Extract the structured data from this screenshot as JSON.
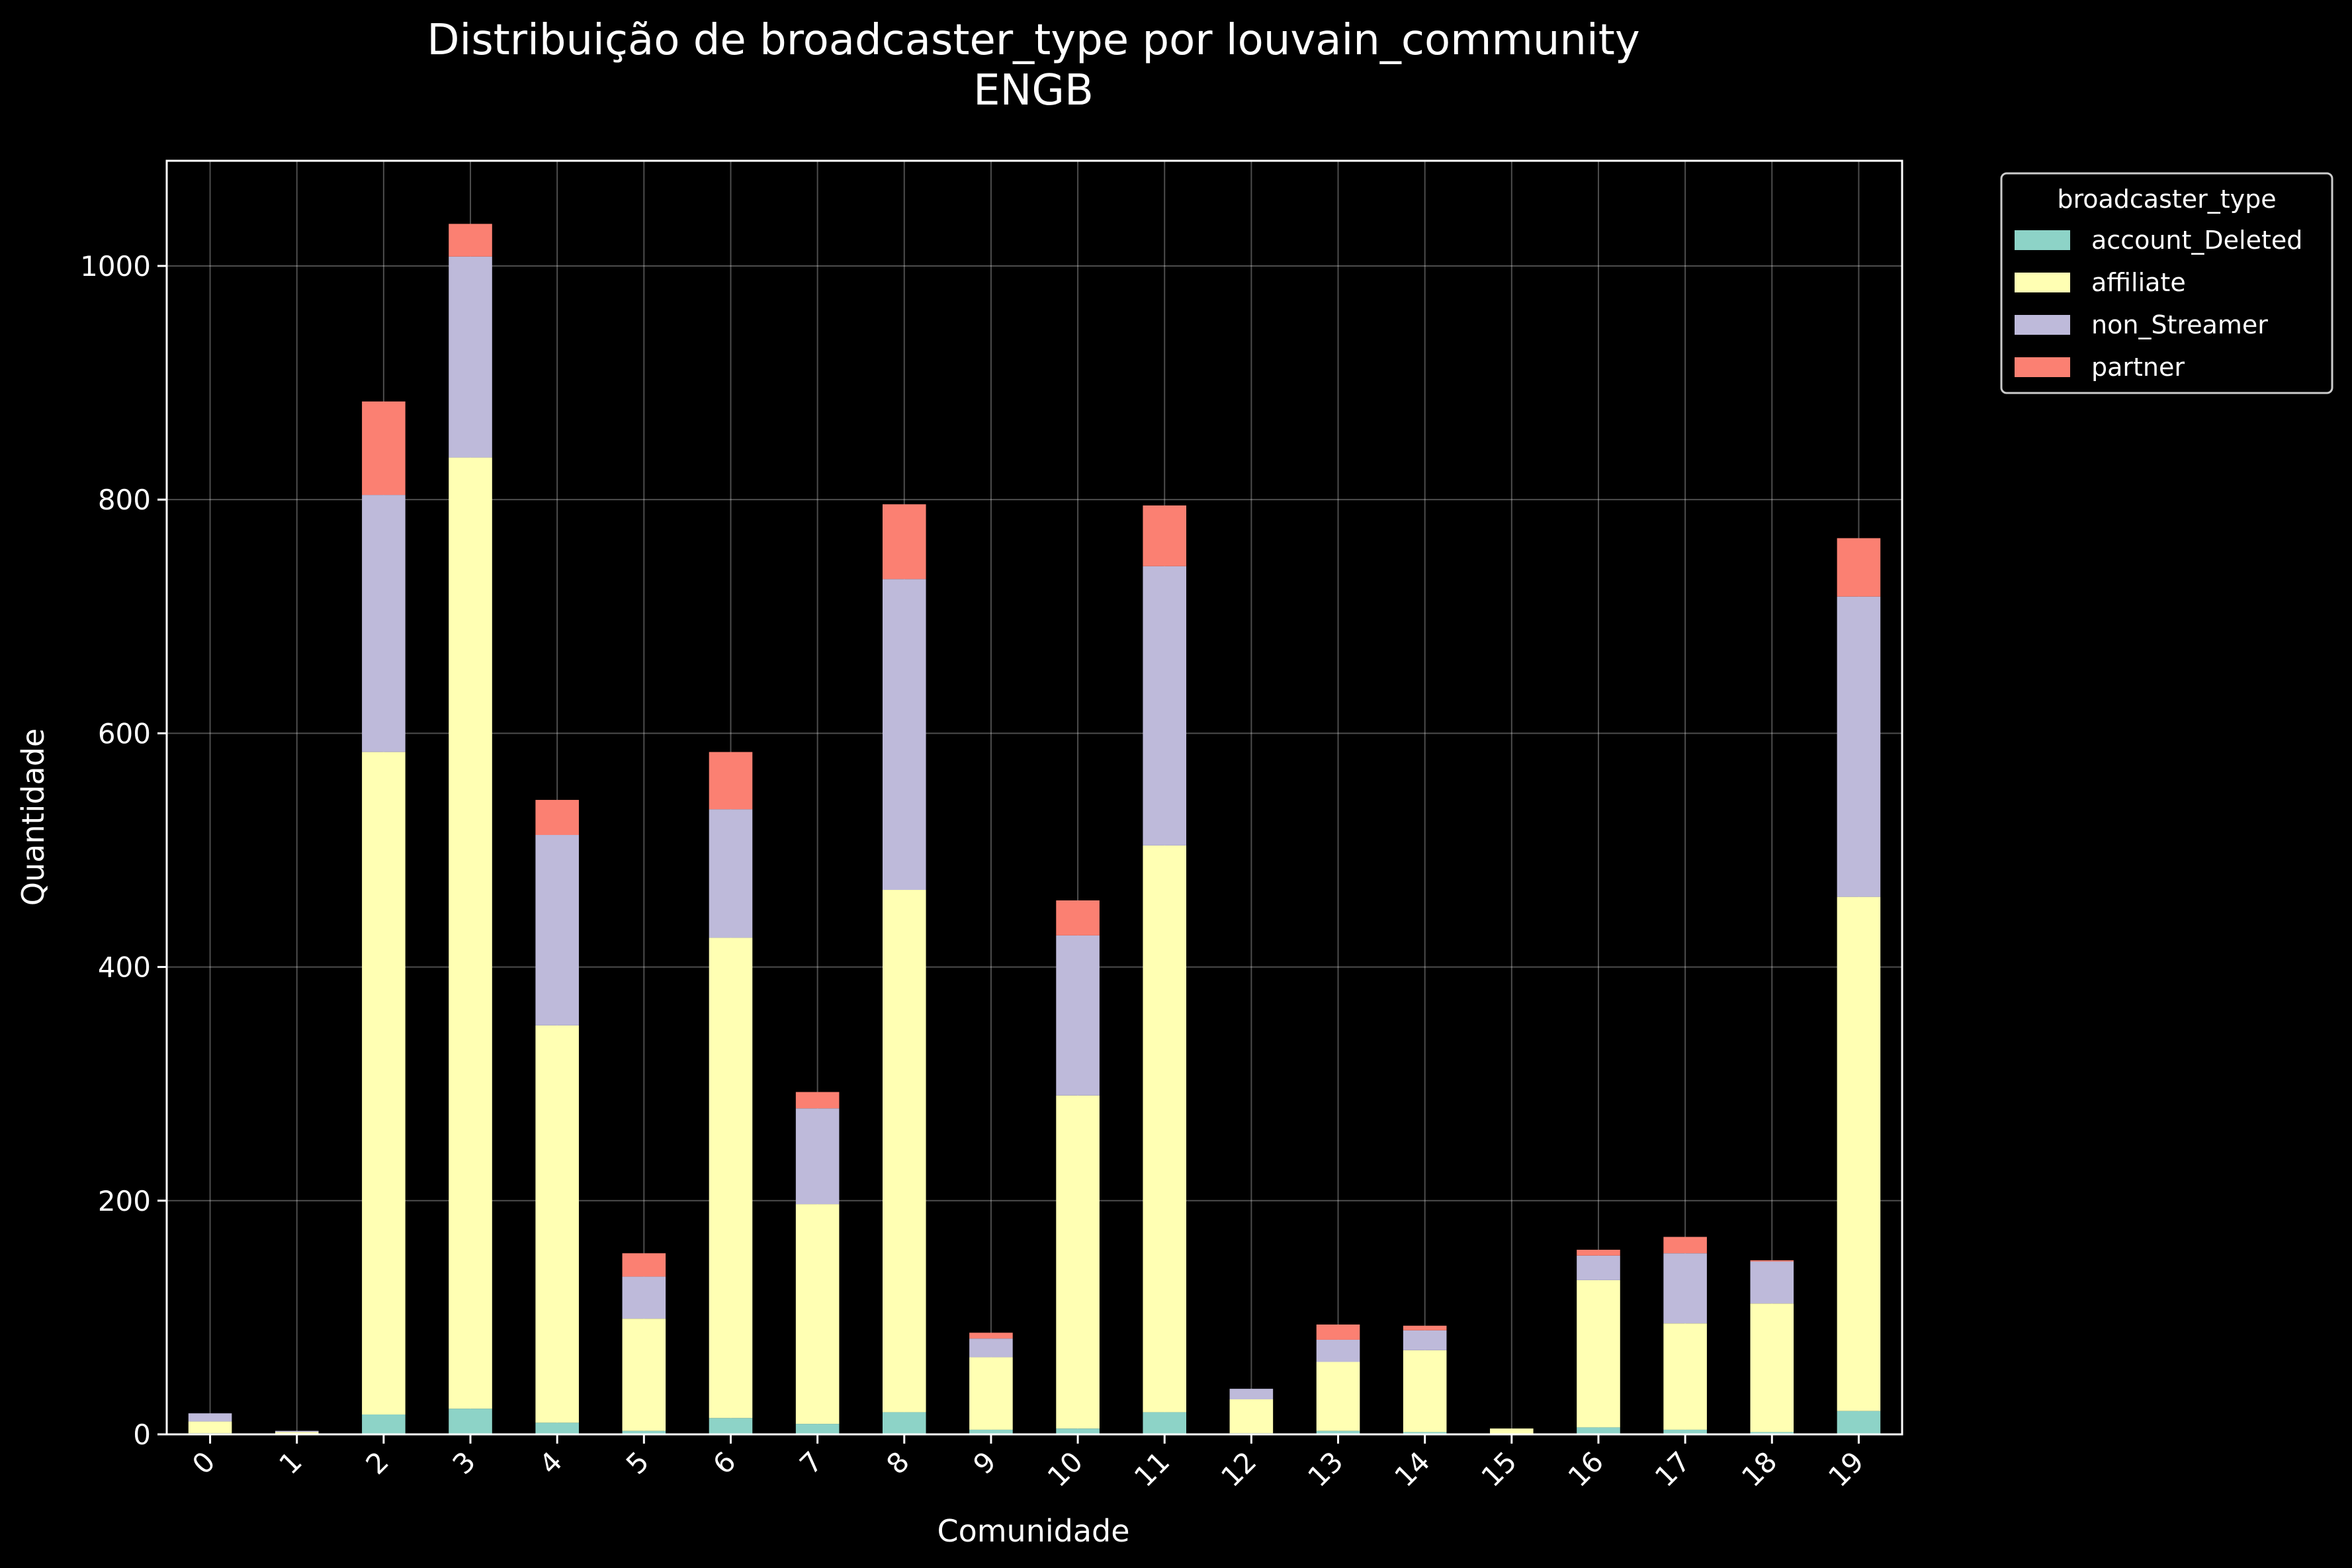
{
  "chart_data": {
    "type": "bar",
    "stacked": true,
    "title": "Distribuição de broadcaster_type por louvain_community",
    "subtitle": "ENGB",
    "xlabel": "Comunidade",
    "ylabel": "Quantidade",
    "ylim": [
      0,
      1090
    ],
    "yticks": [
      0,
      200,
      400,
      600,
      800,
      1000
    ],
    "grid": true,
    "legend_title": "broadcaster_type",
    "legend_position": "outside-upper-right",
    "categories": [
      "0",
      "1",
      "2",
      "3",
      "4",
      "5",
      "6",
      "7",
      "8",
      "9",
      "10",
      "11",
      "12",
      "13",
      "14",
      "15",
      "16",
      "17",
      "18",
      "19"
    ],
    "series": [
      {
        "name": "account_Deleted",
        "color": "#8dd3c7",
        "values": [
          1,
          0,
          17,
          22,
          10,
          3,
          14,
          9,
          19,
          4,
          5,
          19,
          1,
          3,
          2,
          0,
          6,
          4,
          2,
          20
        ]
      },
      {
        "name": "affiliate",
        "color": "#ffffb3",
        "values": [
          10,
          2,
          567,
          814,
          340,
          96,
          411,
          188,
          447,
          62,
          285,
          485,
          29,
          59,
          70,
          5,
          126,
          91,
          110,
          440
        ]
      },
      {
        "name": "non_Streamer",
        "color": "#bebada",
        "values": [
          7,
          1,
          220,
          172,
          163,
          36,
          110,
          82,
          266,
          16,
          137,
          239,
          9,
          19,
          17,
          0,
          21,
          60,
          36,
          257
        ]
      },
      {
        "name": "partner",
        "color": "#fb8072",
        "values": [
          0,
          0,
          80,
          28,
          30,
          20,
          49,
          14,
          64,
          5,
          30,
          52,
          0,
          13,
          4,
          0,
          5,
          14,
          1,
          50
        ]
      }
    ]
  }
}
